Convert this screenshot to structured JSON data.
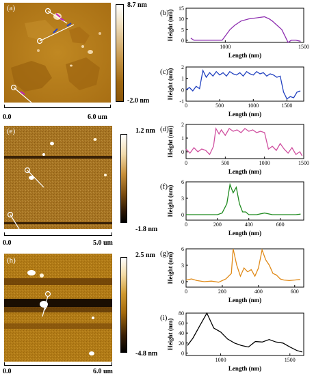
{
  "afm_panels": [
    {
      "label": "(a)",
      "colorbar_max": "8.7 nm",
      "colorbar_min": "-2.0 nm",
      "scale_left": "0.0",
      "scale_right": "6.0 um"
    },
    {
      "label": "(e)",
      "colorbar_max": "1.2 nm",
      "colorbar_min": "-1.8 nm",
      "scale_left": "0.0",
      "scale_right": "5.0 um"
    },
    {
      "label": "(h)",
      "colorbar_max": "2.5 nm",
      "colorbar_min": "-4.8 nm",
      "scale_left": "0.0",
      "scale_right": "6.0 um"
    }
  ],
  "colors": {
    "afm_brown": "#b8801e",
    "afm_dark": "#8a5508",
    "profile_b": "#8e2fb0",
    "profile_c": "#1f3fbf",
    "profile_d": "#d050a0",
    "profile_f": "#1e8a1e",
    "profile_g": "#e08a18",
    "profile_i": "#000000"
  },
  "chart_data": [
    {
      "panel": "(b)",
      "type": "line",
      "xlabel": "Length (nm)",
      "ylabel": "Height (nm)",
      "xlim": [
        750,
        1500
      ],
      "ylim": [
        -1,
        15
      ],
      "xticks": [
        "1000",
        "1500"
      ],
      "yticks": [
        "0",
        "5",
        "10",
        "15"
      ],
      "x": [
        780,
        800,
        850,
        900,
        950,
        980,
        1000,
        1030,
        1060,
        1100,
        1150,
        1200,
        1250,
        1280,
        1300,
        1330,
        1360,
        1380,
        1400,
        1420,
        1450,
        1480
      ],
      "y": [
        1,
        0,
        0,
        0,
        0,
        0,
        2,
        5,
        7,
        9,
        10,
        10.5,
        11,
        10,
        9,
        7,
        5,
        2,
        -1,
        0,
        0,
        -0.5
      ]
    },
    {
      "panel": "(c)",
      "type": "line",
      "xlabel": "Length (nm)",
      "ylabel": "Height (nm)",
      "xlim": [
        0,
        1750
      ],
      "ylim": [
        -1,
        2
      ],
      "xticks": [
        "0",
        "500",
        "1000",
        "1500"
      ],
      "yticks": [
        "-1",
        "0",
        "1",
        "2"
      ],
      "x": [
        0,
        50,
        100,
        150,
        200,
        250,
        300,
        350,
        400,
        450,
        500,
        550,
        600,
        650,
        700,
        750,
        800,
        850,
        900,
        950,
        1000,
        1050,
        1100,
        1150,
        1200,
        1250,
        1300,
        1350,
        1400,
        1450,
        1500,
        1550,
        1600,
        1650,
        1700
      ],
      "y": [
        0,
        0.2,
        -0.1,
        0.3,
        0.1,
        1.7,
        1.1,
        1.5,
        1.2,
        1.6,
        1.3,
        1.5,
        1.2,
        1.6,
        1.4,
        1.3,
        1.5,
        1.2,
        1.6,
        1.4,
        1.3,
        1.6,
        1.4,
        1.5,
        1.2,
        1.4,
        1.3,
        1.1,
        1.2,
        -0.2,
        -0.8,
        -0.6,
        -0.7,
        -0.2,
        -0.1
      ]
    },
    {
      "panel": "(d)",
      "type": "line",
      "xlabel": "Length (nm)",
      "ylabel": "Height (nm)",
      "xlim": [
        0,
        1500
      ],
      "ylim": [
        -0.5,
        2
      ],
      "xticks": [
        "0",
        "500",
        "1000",
        "1500"
      ],
      "yticks": [
        "0",
        "1",
        "2"
      ],
      "x": [
        0,
        50,
        100,
        150,
        200,
        250,
        300,
        350,
        380,
        420,
        450,
        500,
        550,
        600,
        650,
        700,
        750,
        800,
        850,
        900,
        950,
        1000,
        1050,
        1100,
        1150,
        1200,
        1250,
        1300,
        1350,
        1400,
        1450,
        1480
      ],
      "y": [
        0.2,
        -0.1,
        0.3,
        0,
        0.2,
        0.1,
        -0.2,
        0.4,
        1.7,
        1.3,
        1.6,
        1.2,
        1.7,
        1.5,
        1.6,
        1.4,
        1.7,
        1.5,
        1.6,
        1.4,
        1.5,
        1.4,
        0.2,
        0.4,
        0.1,
        0.6,
        0.2,
        -0.1,
        0.3,
        -0.2,
        0,
        -0.3
      ]
    },
    {
      "panel": "(f)",
      "type": "line",
      "xlabel": "Length (nm)",
      "ylabel": "Height (nm)",
      "xlim": [
        0,
        750
      ],
      "ylim": [
        -1,
        6
      ],
      "xticks": [
        "0",
        "200",
        "400",
        "600"
      ],
      "yticks": [
        "0",
        "3",
        "6"
      ],
      "x": [
        0,
        50,
        100,
        150,
        200,
        230,
        260,
        280,
        300,
        320,
        340,
        360,
        380,
        400,
        450,
        500,
        550,
        600,
        650,
        700,
        730
      ],
      "y": [
        0,
        0,
        0,
        0,
        0,
        0.3,
        2,
        5.5,
        4,
        5,
        2,
        0.5,
        0.5,
        0,
        0,
        0.3,
        0,
        0,
        0,
        0,
        0.1
      ]
    },
    {
      "panel": "(g)",
      "type": "line",
      "xlabel": "Length (nm)",
      "ylabel": "Height (nm)",
      "xlim": [
        0,
        650
      ],
      "ylim": [
        -1,
        6
      ],
      "xticks": [
        "0",
        "200",
        "400",
        "600"
      ],
      "yticks": [
        "0",
        "3",
        "6"
      ],
      "x": [
        0,
        30,
        60,
        100,
        140,
        180,
        220,
        250,
        260,
        280,
        300,
        320,
        340,
        360,
        380,
        400,
        420,
        440,
        460,
        480,
        500,
        520,
        540,
        570,
        600,
        630
      ],
      "y": [
        0.3,
        0.5,
        0.2,
        0,
        0.1,
        -0.1,
        0.5,
        1.5,
        6,
        3,
        1,
        2.5,
        1.8,
        2.2,
        1,
        2.5,
        5.8,
        4,
        3,
        1.5,
        1.2,
        0.5,
        0.3,
        0.2,
        0.3,
        0.4
      ]
    },
    {
      "panel": "(i)",
      "type": "line",
      "xlabel": "Length (nm)",
      "ylabel": "Height (nm)",
      "xlim": [
        750,
        1600
      ],
      "ylim": [
        -5,
        80
      ],
      "xticks": [
        "1000",
        "1500"
      ],
      "yticks": [
        "0",
        "20",
        "40",
        "60",
        "80"
      ],
      "x": [
        760,
        800,
        850,
        900,
        950,
        1000,
        1050,
        1100,
        1150,
        1200,
        1250,
        1300,
        1350,
        1400,
        1450,
        1500,
        1550,
        1590
      ],
      "y": [
        15,
        30,
        55,
        80,
        50,
        42,
        28,
        20,
        15,
        12,
        23,
        22,
        27,
        22,
        20,
        12,
        5,
        2
      ]
    }
  ]
}
